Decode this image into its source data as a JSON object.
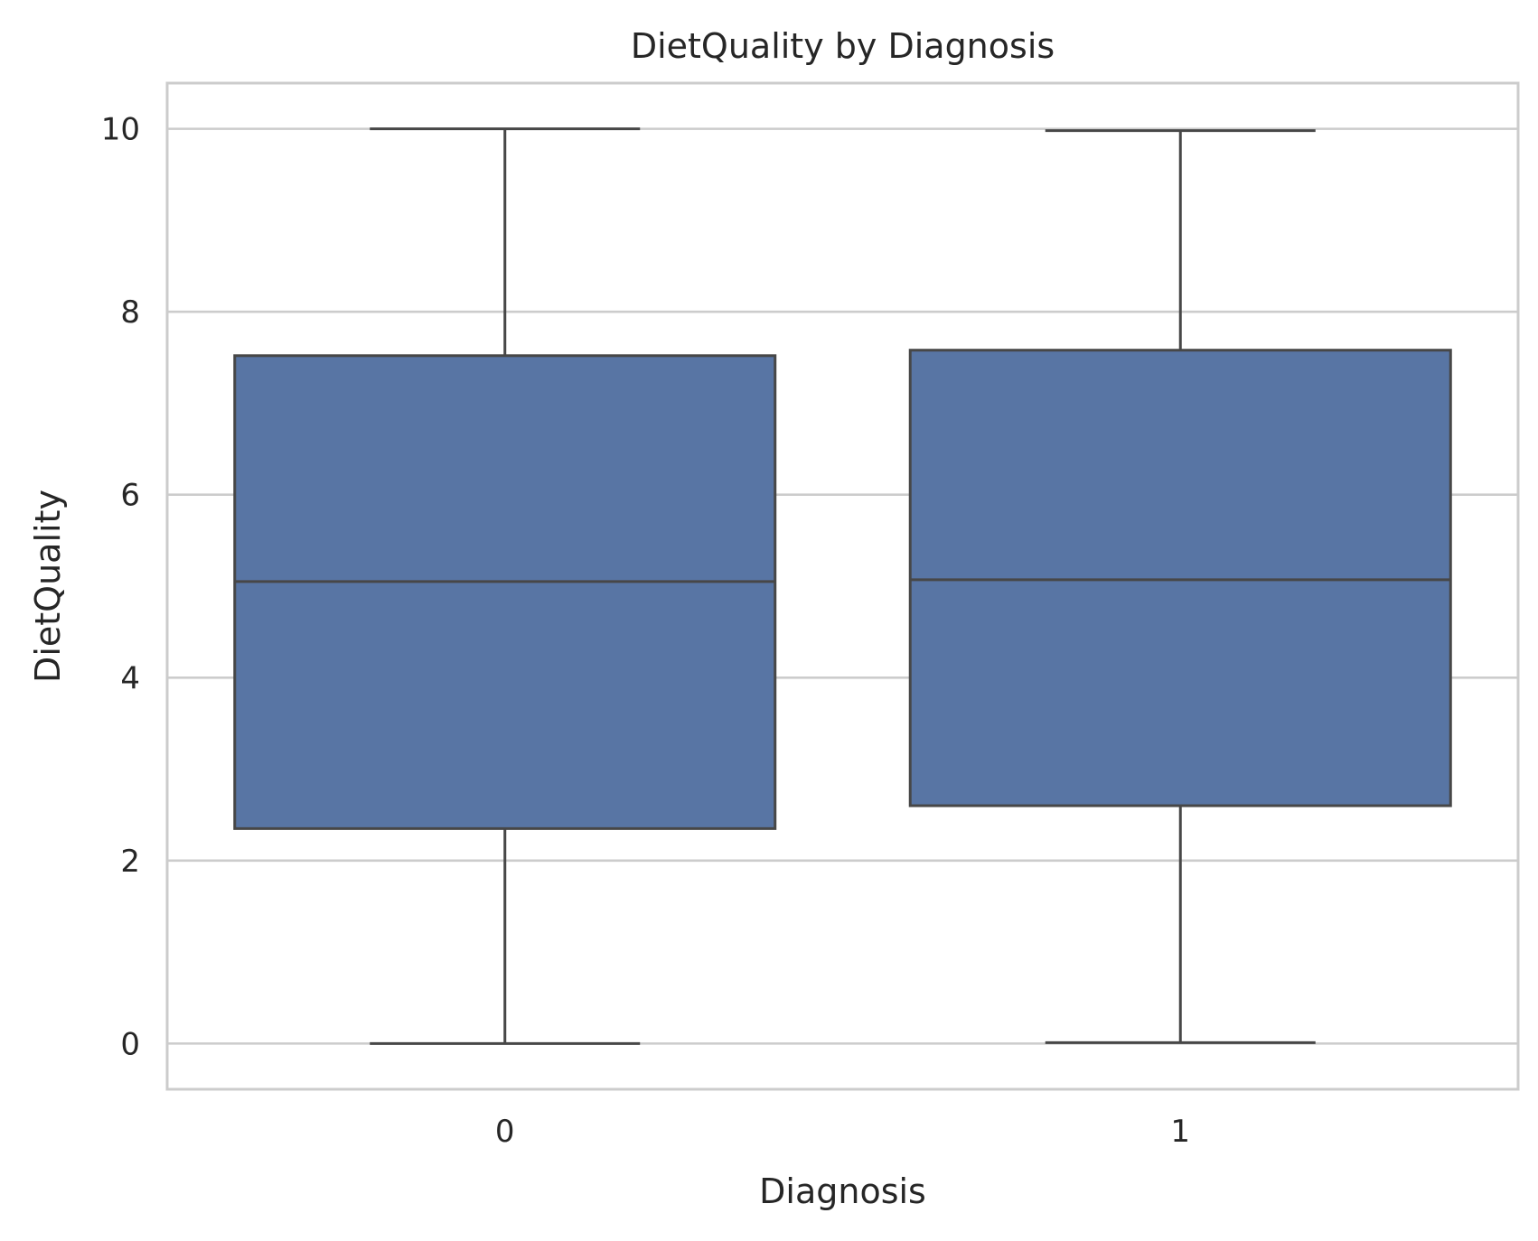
{
  "chart_data": {
    "type": "box",
    "title": "DietQuality by Diagnosis",
    "xlabel": "Diagnosis",
    "ylabel": "DietQuality",
    "categories": [
      "0",
      "1"
    ],
    "ylim": [
      -0.5,
      10.5
    ],
    "yticks": [
      0,
      2,
      4,
      6,
      8,
      10
    ],
    "grid": true,
    "boxes": [
      {
        "category": "0",
        "whisker_low": 0.0,
        "q1": 2.35,
        "median": 5.05,
        "q3": 7.52,
        "whisker_high": 10.0
      },
      {
        "category": "1",
        "whisker_low": 0.01,
        "q1": 2.6,
        "median": 5.07,
        "q3": 7.58,
        "whisker_high": 9.98
      }
    ],
    "colors": {
      "box_fill": "#5875a4",
      "box_edge": "#474747",
      "grid": "#cccccc",
      "spine": "#cccccc",
      "text": "#262626"
    }
  }
}
